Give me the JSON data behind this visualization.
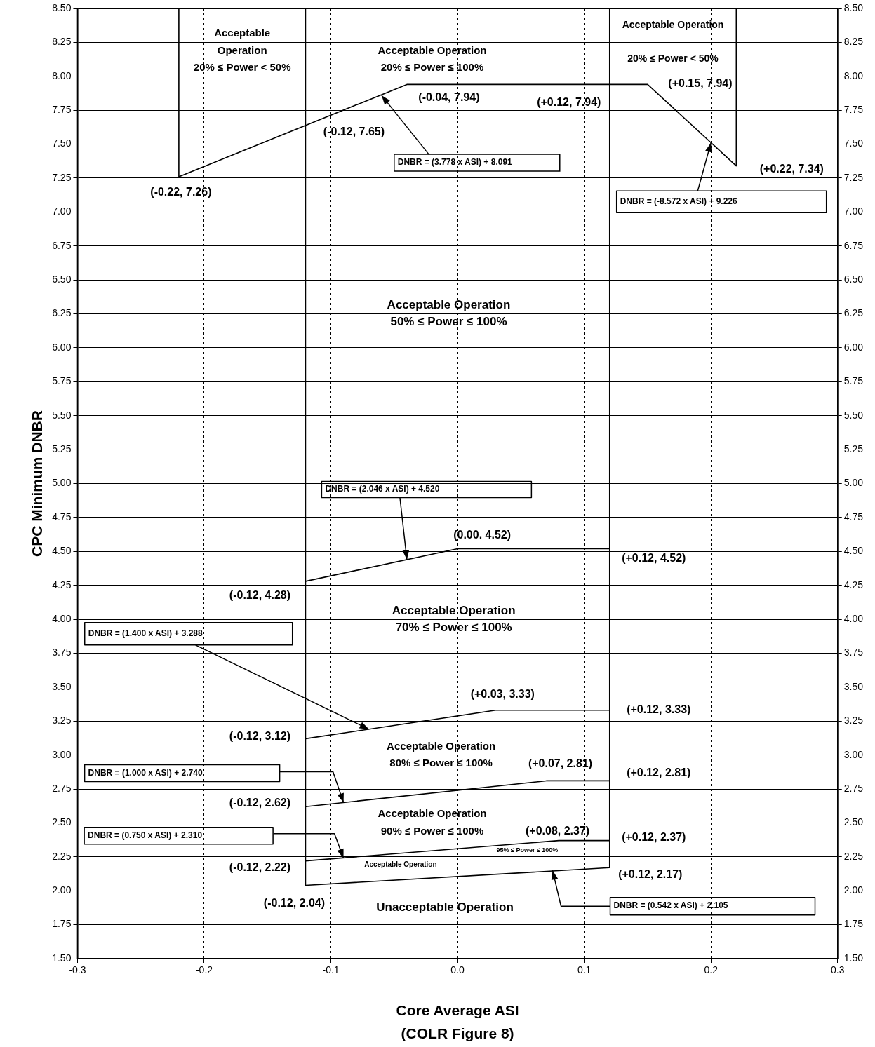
{
  "chart_data": {
    "type": "line",
    "xlabel": "Core Average ASI",
    "ylabel": "CPC Minimum DNBR",
    "xlim": [
      -0.3,
      0.3
    ],
    "xticks": [
      -0.3,
      -0.2,
      -0.1,
      {
        "value": 0,
        "label": "0.0"
      },
      0.1,
      0.2,
      0.3
    ],
    "ylim": [
      1.5,
      8.5
    ],
    "yticks": [
      {
        "value": 1.5,
        "label": "1.50"
      },
      1.75,
      {
        "value": 2,
        "label": "2.00"
      },
      2.25,
      {
        "value": 2.5,
        "label": "2.50"
      },
      2.75,
      {
        "value": 3,
        "label": "3.00"
      },
      3.25,
      {
        "value": 3.5,
        "label": "3.50"
      },
      3.75,
      {
        "value": 4,
        "label": "4.00"
      },
      4.25,
      {
        "value": 4.5,
        "label": "4.50"
      },
      4.75,
      {
        "value": 5,
        "label": "5.00"
      },
      5.25,
      {
        "value": 5.5,
        "label": "5.50"
      },
      5.75,
      {
        "value": 6,
        "label": "6.00"
      },
      6.25,
      {
        "value": 6.5,
        "label": "6.50"
      },
      6.75,
      {
        "value": 7,
        "label": "7.00"
      },
      7.25,
      {
        "value": 7.5,
        "label": "7.50"
      },
      7.75,
      {
        "value": 8,
        "label": "8.00"
      },
      8.25,
      {
        "value": 8.5,
        "label": "8.50"
      }
    ],
    "y2lim": [
      1.5,
      8.5
    ],
    "y2ticks": [
      {
        "value": 1.5,
        "label": "1.50"
      },
      1.75,
      {
        "value": 2,
        "label": "2.00"
      },
      2.25,
      {
        "value": 2.5,
        "label": "2.50"
      },
      2.75,
      {
        "value": 3,
        "label": "3.00"
      },
      3.25,
      {
        "value": 3.5,
        "label": "3.50"
      },
      3.75,
      {
        "value": 4,
        "label": "4.00"
      },
      4.25,
      {
        "value": 4.5,
        "label": "4.50"
      },
      4.75,
      {
        "value": 5,
        "label": "5.00"
      },
      5.25,
      {
        "value": 5.5,
        "label": "5.50"
      },
      5.75,
      {
        "value": 6,
        "label": "6.00"
      },
      6.25,
      {
        "value": 6.5,
        "label": "6.50"
      },
      6.75,
      {
        "value": 7,
        "label": "7.00"
      },
      7.25,
      {
        "value": 7.5,
        "label": "7.50"
      },
      7.75,
      {
        "value": 8,
        "label": "8.00"
      },
      8.25,
      {
        "value": 8.5,
        "label": "8.50"
      }
    ],
    "grid": true,
    "legend": false,
    "marker": "none",
    "line_style": "solid",
    "series": [
      {
        "color": "#000000",
        "x": [
          -0.22,
          -0.22,
          -0.04,
          0.15,
          0.22,
          0.22
        ],
        "values": [
          8.5,
          7.26,
          7.94,
          7.94,
          7.34,
          8.5
        ]
      },
      {
        "color": "#000000",
        "x": [
          -0.12,
          0,
          0.12
        ],
        "values": [
          4.28,
          4.52,
          4.52
        ]
      },
      {
        "color": "#000000",
        "x": [
          -0.12,
          0.03,
          0.12
        ],
        "values": [
          3.12,
          3.33,
          3.33
        ]
      },
      {
        "color": "#000000",
        "x": [
          -0.12,
          0.07,
          0.12
        ],
        "values": [
          2.62,
          2.81,
          2.81
        ]
      },
      {
        "color": "#000000",
        "x": [
          -0.12,
          0.08,
          0.12
        ],
        "values": [
          2.22,
          2.37,
          2.37
        ]
      },
      {
        "color": "#000000",
        "x": [
          -0.12,
          -0.12,
          0.12,
          0.12
        ],
        "values": [
          8.5,
          2.04,
          2.17,
          8.5
        ]
      }
    ],
    "annotations": [
      "Acceptable\nOperation\n20% ≤ Power < 50%",
      "Acceptable Operation\n20% ≤ Power ≤ 100%",
      "Acceptable Operation\n20% ≤ Power < 50%",
      "Acceptable Operation\n50% ≤ Power ≤ 100%",
      "Acceptable Operation\n70% ≤ Power ≤ 100%",
      "Acceptable Operation\n80% ≤ Power ≤ 100%",
      "Acceptable Operation\n90% ≤ Power ≤ 100%",
      "95% ≤ Power ≤ 100%",
      "Acceptable Operation",
      "Unacceptable Operation",
      "(COLR Figure 8)",
      {
        "text": "(-0.22, 7.26)",
        "x": -0.22,
        "y": 7.26
      },
      {
        "text": "(-0.12, 7.65)",
        "x": -0.12,
        "y": 7.65
      },
      {
        "text": "(-0.04, 7.94)",
        "x": -0.04,
        "y": 7.94
      },
      {
        "text": "(+0.12, 7.94)",
        "x": 0.12,
        "y": 7.94
      },
      {
        "text": "(+0.15, 7.94)",
        "x": 0.15,
        "y": 7.94
      },
      {
        "text": "(+0.22, 7.34)",
        "x": 0.22,
        "y": 7.34
      },
      {
        "text": "(0.00. 4.52)",
        "x": 0,
        "y": 4.52
      },
      {
        "text": "(+0.12, 4.52)",
        "x": 0.12,
        "y": 4.52
      },
      {
        "text": "(-0.12, 4.28)",
        "x": -0.12,
        "y": 4.28
      },
      {
        "text": "(+0.03, 3.33)",
        "x": 0.03,
        "y": 3.33
      },
      {
        "text": "(+0.12, 3.33)",
        "x": 0.12,
        "y": 3.33
      },
      {
        "text": "(-0.12, 3.12)",
        "x": -0.12,
        "y": 3.12
      },
      {
        "text": "(+0.07, 2.81)",
        "x": 0.07,
        "y": 2.81
      },
      {
        "text": "(+0.12, 2.81)",
        "x": 0.12,
        "y": 2.81
      },
      {
        "text": "(-0.12, 2.62)",
        "x": -0.12,
        "y": 2.62
      },
      {
        "text": "(+0.08, 2.37)",
        "x": 0.08,
        "y": 2.37
      },
      {
        "text": "(+0.12, 2.37)",
        "x": 0.12,
        "y": 2.37
      },
      {
        "text": "(-0.12, 2.22)",
        "x": -0.12,
        "y": 2.22
      },
      {
        "text": "(+0.12, 2.17)",
        "x": 0.12,
        "y": 2.17
      },
      {
        "text": "(-0.12, 2.04)",
        "x": -0.12,
        "y": 2.04
      },
      {
        "text": "DNBR = (3.778 x ASI) + 8.091",
        "x": -0.06,
        "y": 7.86
      },
      {
        "text": "DNBR = (-8.572 x ASI) + 9.226",
        "x": 0.2,
        "y": 7.51
      },
      {
        "text": "DNBR = (2.046 x ASI) + 4.520",
        "x": -0.04,
        "y": 4.44
      },
      {
        "text": "DNBR = (1.400 x ASI) + 3.288",
        "x": -0.07,
        "y": 3.19
      },
      "DNBR = (1.000 x ASI) + 2.740",
      "DNBR = (0.750 x ASI) + 2.310",
      {
        "text": "DNBR = (0.542 x ASI) + 2.105",
        "x": 0.075,
        "y": 2.15
      }
    ]
  }
}
